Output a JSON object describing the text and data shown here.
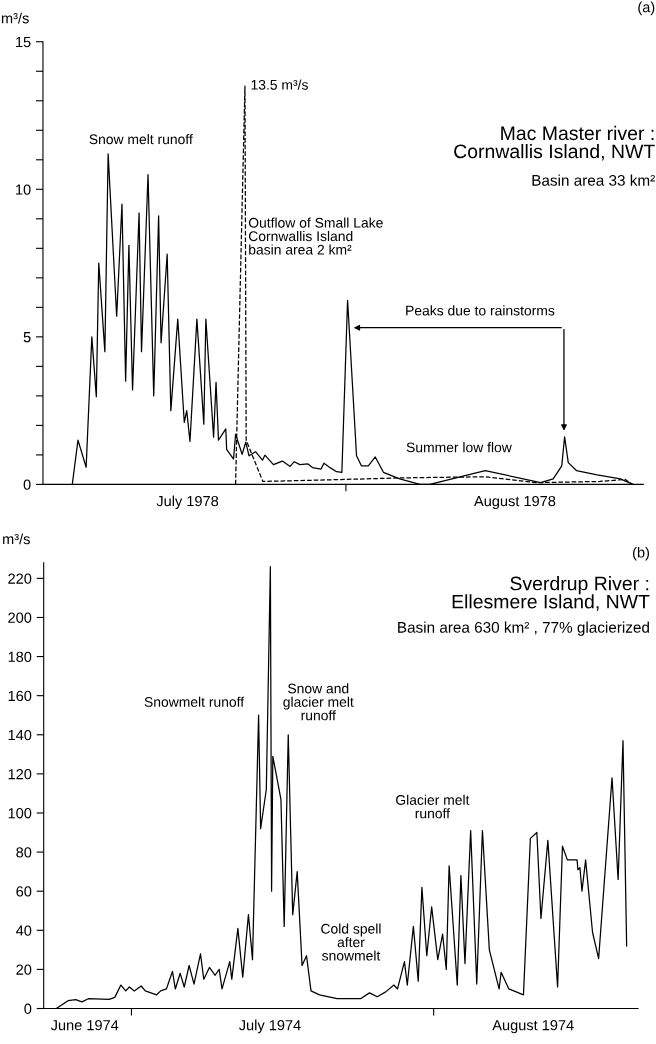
{
  "chart_data": [
    {
      "type": "line",
      "title": "Mac Master river :\nCornwallis Island, NWT",
      "subtitle": "Basin area 33 km²",
      "ylabel": "m³/s",
      "xlim": [
        "1978-07-01",
        "1978-08-31T10:00"
      ],
      "xticks": [
        {
          "value": "1978-07-15T19:00",
          "label": "July 1978"
        },
        {
          "value": "1978-08-01",
          "label": null
        },
        {
          "value": "1978-08-18T07:00",
          "label": "August 1978"
        }
      ],
      "ylim": [
        0,
        15
      ],
      "yticks": [
        0,
        {
          "value": 1,
          "label": null
        },
        {
          "value": 2,
          "label": null
        },
        {
          "value": 3,
          "label": null
        },
        {
          "value": 4,
          "label": null
        },
        5,
        {
          "value": 6,
          "label": null
        },
        {
          "value": 7,
          "label": null
        },
        {
          "value": 8,
          "label": null
        },
        {
          "value": 9,
          "label": null
        },
        10,
        {
          "value": 11,
          "label": null
        },
        {
          "value": 12,
          "label": null
        },
        {
          "value": 13,
          "label": null
        },
        {
          "value": 14,
          "label": null
        },
        15
      ],
      "grid": false,
      "legend": false,
      "marker": "none",
      "series": [
        {
          "color": "#000000",
          "line_style": "solid",
          "x": [
            "1978-07-04T00:00",
            "1978-07-04T14:00",
            "1978-07-05T10:00",
            "1978-07-06T00:00",
            "1978-07-06T11:00",
            "1978-07-06T17:00",
            "1978-07-07T08:00",
            "1978-07-07T16:00",
            "1978-07-08T13:00",
            "1978-07-09T02:00",
            "1978-07-09T11:00",
            "1978-07-09T19:00",
            "1978-07-10T04:00",
            "1978-07-10T20:00",
            "1978-07-11T02:00",
            "1978-07-11T18:00",
            "1978-07-12T08:00",
            "1978-07-12T20:00",
            "1978-07-13T02:00",
            "1978-07-13T17:00",
            "1978-07-14T02:00",
            "1978-07-14T19:00",
            "1978-07-15T11:00",
            "1978-07-15T17:00",
            "1978-07-16T01:00",
            "1978-07-16T18:00",
            "1978-07-17T11:00",
            "1978-07-17T16:00",
            "1978-07-18T11:00",
            "1978-07-18T17:00",
            "1978-07-18T23:00",
            "1978-07-19T17:00",
            "1978-07-19T19:00",
            "1978-07-20T12:00",
            "1978-07-20T17:00",
            "1978-07-21T09:00",
            "1978-07-21T18:00",
            "1978-07-22T02:00",
            "1978-07-22T18:00",
            "1978-07-23T11:00",
            "1978-07-23T17:00",
            "1978-07-24T14:00",
            "1978-07-25T12:00",
            "1978-07-26T07:00",
            "1978-07-26T17:00",
            "1978-07-27T07:00",
            "1978-07-28T02:00",
            "1978-07-28T14:00",
            "1978-07-29T11:00",
            "1978-07-29T18:00",
            "1978-07-30T10:00",
            "1978-07-31T01:00",
            "1978-07-31T14:00",
            "1978-08-01T04:00",
            "1978-08-01T08:00",
            "1978-08-02T02:00",
            "1978-08-02T14:00",
            "1978-08-03T07:00",
            "1978-08-04T00:00",
            "1978-08-04T20:00",
            "1978-08-06T12:00",
            "1978-08-08T14:00",
            "1978-08-09T14:00",
            "1978-08-15T06:00",
            "1978-08-20T22:00",
            "1978-08-22T05:00",
            "1978-08-23T02:00",
            "1978-08-23T09:00",
            "1978-08-23T18:00",
            "1978-08-24T14:00",
            "1978-08-26T17:00",
            "1978-08-29T02:00",
            "1978-08-30T09:00"
          ],
          "values": [
            0,
            1.5,
            0.58,
            5.0,
            2.97,
            7.5,
            4.5,
            11.2,
            5.7,
            9.5,
            3.5,
            8.1,
            3.2,
            9.2,
            4.5,
            10.5,
            3.0,
            9.1,
            4.8,
            7.8,
            2.5,
            5.6,
            2.1,
            2.5,
            1.46,
            5.6,
            2.04,
            5.6,
            1.6,
            3.46,
            1.5,
            1.88,
            1.19,
            0.86,
            1.7,
            1.02,
            1.43,
            0.97,
            1.11,
            0.82,
            0.99,
            0.67,
            0.79,
            0.61,
            0.77,
            0.67,
            0.7,
            0.57,
            0.52,
            0.72,
            0.56,
            0.43,
            0.41,
            6.24,
            5.3,
            0.97,
            0.63,
            0.63,
            0.93,
            0.41,
            0.19,
            0,
            0,
            0.47,
            0.06,
            0.19,
            0.63,
            1.61,
            0.74,
            0.47,
            0.32,
            0.19,
            0
          ]
        },
        {
          "color": "#000000",
          "line_style": "dashed",
          "x": [
            "1978-07-20T17:00",
            "1978-07-21T16:00",
            "1978-07-21T19:00",
            "1978-07-23T12:00",
            "1978-07-27T07:00",
            "1978-08-01T00:00",
            "1978-08-06T12:00",
            "1978-08-15T05:00",
            "1978-08-20T12:00",
            "1978-08-27T00:00",
            "1978-08-29T14:00",
            "1978-08-30T07:00"
          ],
          "values": [
            0,
            13.5,
            1.5,
            0.1,
            0.13,
            0.17,
            0.22,
            0.26,
            0.06,
            0.1,
            0.17,
            0
          ]
        }
      ],
      "annotations": [
        "(a)",
        "Snow melt runoff",
        {
          "text": "13.5 m³/s",
          "x": "1978-07-21T16:00",
          "y": 13.5
        },
        "Outflow of Small Lake\nCornwallis Island\nbasin area 2 km²",
        "Peaks due to rainstorms",
        "Summer low flow"
      ]
    },
    {
      "type": "line",
      "title": "Sverdrup River :\nEllesmere Island, NWT",
      "subtitle": "Basin area 630 km² , 77% glacierized",
      "ylabel": "m³/s",
      "xlim": [
        "1974-06-22T00:00",
        "1974-08-21T23:00"
      ],
      "xticks": [
        {
          "value": "1974-06-26T05:00",
          "label": "June 1974"
        },
        {
          "value": "1974-07-01",
          "label": null
        },
        {
          "value": "1974-07-15T05:00",
          "label": "July 1974"
        },
        {
          "value": "1974-08-01",
          "label": null
        },
        {
          "value": "1974-08-11T05:00",
          "label": "August 1974"
        }
      ],
      "ylim": [
        0,
        228
      ],
      "yticks": [
        0,
        20,
        40,
        60,
        80,
        100,
        120,
        140,
        160,
        180,
        200,
        220
      ],
      "grid": false,
      "legend": false,
      "marker": "none",
      "series": [
        {
          "color": "#000000",
          "line_style": "solid",
          "x": [
            "1974-06-23T07:00",
            "1974-06-24T12:00",
            "1974-06-25T07:00",
            "1974-06-25T22:00",
            "1974-06-26T14:00",
            "1974-06-28T17:00",
            "1974-06-29T07:00",
            "1974-06-29T22:00",
            "1974-06-30T10:00",
            "1974-06-30T19:00",
            "1974-07-01T07:00",
            "1974-07-02T00:00",
            "1974-07-02T10:00",
            "1974-07-03T14:00",
            "1974-07-04T00:00",
            "1974-07-04T14:00",
            "1974-07-05T05:00",
            "1974-07-05T12:00",
            "1974-07-06T00:00",
            "1974-07-06T10:00",
            "1974-07-06T22:00",
            "1974-07-07T10:00",
            "1974-07-08T02:00",
            "1974-07-08T10:00",
            "1974-07-09T00:00",
            "1974-07-09T14:00",
            "1974-07-10T00:00",
            "1974-07-10T07:00",
            "1974-07-11T02:00",
            "1974-07-11T07:00",
            "1974-07-11T22:00",
            "1974-07-12T10:00",
            "1974-07-13T00:00",
            "1974-07-13T10:00",
            "1974-07-14T01:00",
            "1974-07-14T06:00",
            "1974-07-14T20:00",
            "1974-07-15T06:00",
            "1974-07-15T09:00",
            "1974-07-15T12:00",
            "1974-07-16T08:00",
            "1974-07-16T16:00",
            "1974-07-17T02:00",
            "1974-07-17T13:00",
            "1974-07-18T00:00",
            "1974-07-18T12:00",
            "1974-07-18T23:00",
            "1974-07-19T10:00",
            "1974-07-20T07:00",
            "1974-07-22T02:00",
            "1974-07-23T10:00",
            "1974-07-24T12:00",
            "1974-07-25T10:00",
            "1974-07-26T05:00",
            "1974-07-27T02:00",
            "1974-07-27T22:00",
            "1974-07-28T07:00",
            "1974-07-29T00:00",
            "1974-07-29T07:00",
            "1974-07-29T22:00",
            "1974-07-30T10:00",
            "1974-07-30T19:00",
            "1974-07-31T07:00",
            "1974-07-31T19:00",
            "1974-08-01T10:00",
            "1974-08-01T22:00",
            "1974-08-02T07:00",
            "1974-08-02T14:00",
            "1974-08-03T10:00",
            "1974-08-03T19:00",
            "1974-08-04T05:00",
            "1974-08-04T19:00",
            "1974-08-05T10:00",
            "1974-08-06T00:00",
            "1974-08-06T17:00",
            "1974-08-07T17:00",
            "1974-08-07T22:00",
            "1974-08-08T17:00",
            "1974-08-10T05:00",
            "1974-08-10T22:00",
            "1974-08-11T14:00",
            "1974-08-12T00:00",
            "1974-08-12T17:00",
            "1974-08-13T17:00",
            "1974-08-14T05:00",
            "1974-08-14T17:00",
            "1974-08-15T17:00",
            "1974-08-15T19:00",
            "1974-08-16T00:00",
            "1974-08-16T05:00",
            "1974-08-16T14:00",
            "1974-08-17T07:00",
            "1974-08-17T22:00",
            "1974-08-19T07:00",
            "1974-08-19T22:00",
            "1974-08-20T10:00",
            "1974-08-20T19:00"
          ],
          "values": [
            0,
            4,
            4.5,
            3.4,
            5,
            4.7,
            5.7,
            12,
            9,
            11,
            9,
            11.5,
            9,
            7,
            9,
            10,
            19,
            10,
            18,
            11,
            22,
            12.5,
            28,
            15,
            21,
            17,
            20,
            10,
            24,
            15,
            41,
            16,
            48,
            25,
            150,
            92,
            112,
            226,
            60,
            129,
            107,
            42,
            140,
            48,
            70,
            22,
            27,
            9,
            7,
            5,
            5,
            5,
            8,
            6,
            8.5,
            12,
            10,
            24,
            12,
            42,
            14,
            62,
            27,
            52,
            25,
            38,
            20,
            73,
            12,
            68,
            23,
            91,
            12.5,
            91,
            30,
            10,
            18.5,
            10,
            7,
            87,
            90,
            46,
            86,
            11,
            83,
            76,
            76,
            71,
            72,
            60,
            76,
            39,
            25.5,
            118,
            66,
            137,
            32
          ]
        }
      ],
      "annotations": [
        "(b)",
        "Snowmelt runoff",
        "Snow and\nglacier melt\nrunoff",
        "Cold spell\nafter\nsnowmelt",
        "Glacier melt\nrunoff"
      ]
    }
  ]
}
